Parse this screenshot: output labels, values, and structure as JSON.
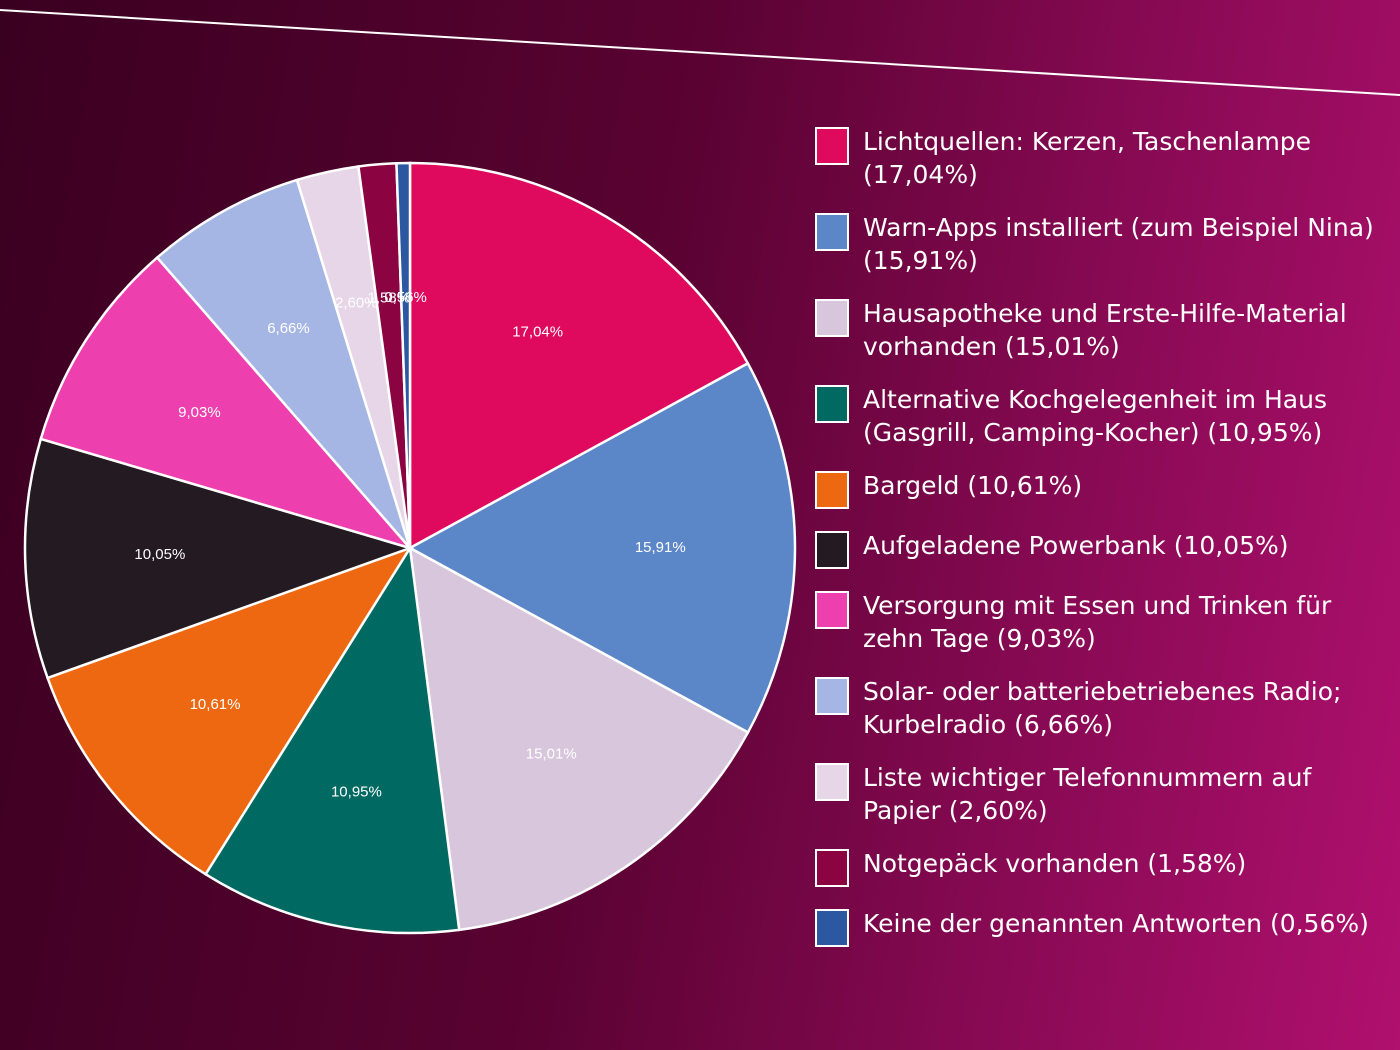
{
  "chart_data": {
    "type": "pie",
    "categories": [
      "Lichtquellen: Kerzen, Taschenlampe (17,04%)",
      "Warn-Apps installiert (zum Beispiel Nina) (15,91%)",
      "Hausapotheke und Erste-Hilfe-Material vorhanden (15,01%)",
      "Alternative Kochgelegenheit im Haus (Gasgrill, Camping-Kocher) (10,95%)",
      "Bargeld (10,61%)",
      "Aufgeladene Powerbank (10,05%)",
      "Versorgung mit Essen und Trinken für zehn Tage (9,03%)",
      "Solar- oder batteriebetriebenes Radio; Kurbelradio (6,66%)",
      "Liste wichtiger Telefonnummern auf Papier (2,60%)",
      "Notgepäck vorhanden (1,58%)",
      "Keine der genannten Antworten (0,56%)"
    ],
    "values": [
      17.04,
      15.91,
      15.01,
      10.95,
      10.61,
      10.05,
      9.03,
      6.66,
      2.6,
      1.58,
      0.56
    ],
    "value_labels": [
      "17,04%",
      "15,91%",
      "15,01%",
      "10,95%",
      "10,61%",
      "10,05%",
      "9,03%",
      "6,66%",
      "2,60%",
      "1,58%",
      "0,56%"
    ],
    "colors": [
      "#df0a5e",
      "#5b86c8",
      "#d8c6dc",
      "#006a62",
      "#ee6812",
      "#241a22",
      "#ee3fae",
      "#a6b6e4",
      "#e6d6e8",
      "#8c0342",
      "#2b58a0"
    ]
  }
}
